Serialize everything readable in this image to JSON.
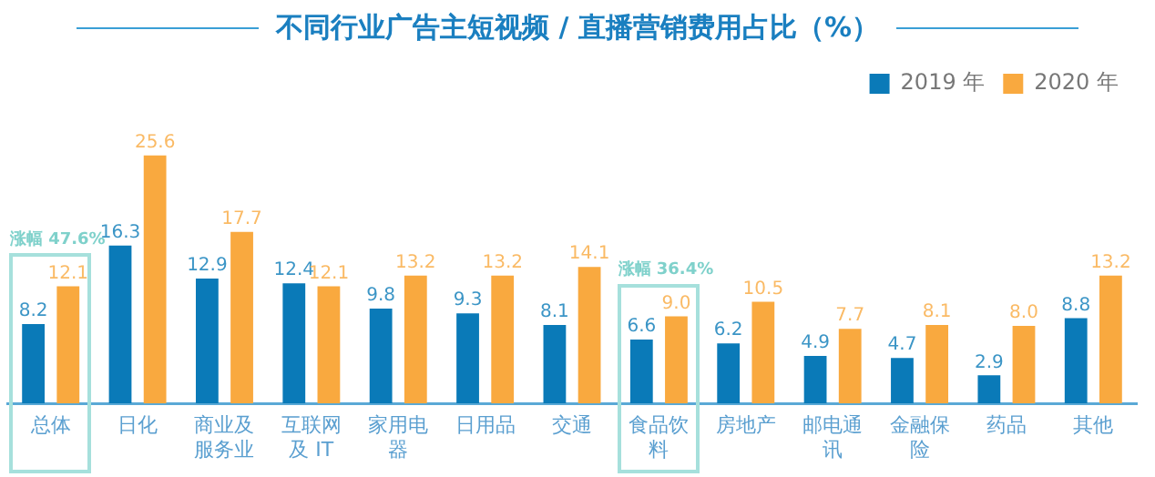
{
  "chart_data": {
    "type": "bar",
    "title": "不同行业广告主短视频 / 直播营销费用占比（%）",
    "categories": [
      "总体",
      "日化",
      "商业及服务业",
      "互联网及 IT",
      "家用电器",
      "日用品",
      "交通",
      "食品饮料",
      "房地产",
      "邮电通讯",
      "金融保险",
      "药品",
      "其他"
    ],
    "series": [
      {
        "name": "2019 年",
        "color": "#0a7ab8",
        "values": [
          8.2,
          16.3,
          12.9,
          12.4,
          9.8,
          9.3,
          8.1,
          6.6,
          6.2,
          4.9,
          4.7,
          2.9,
          8.8
        ]
      },
      {
        "name": "2020 年",
        "color": "#f9a93f",
        "values": [
          12.1,
          25.6,
          17.7,
          12.1,
          13.2,
          13.2,
          14.1,
          9.0,
          10.5,
          7.7,
          8.1,
          8.0,
          13.2
        ],
        "value_labels": [
          "12.1",
          "25.6",
          "17.7",
          "12.1",
          "13.2",
          "13.2",
          "14.1",
          "9.0",
          "10.5",
          "7.7",
          "8.1",
          "8.0",
          "13.2"
        ]
      }
    ],
    "annotations": [
      "涨幅 47.6%",
      "涨幅 36.4%"
    ],
    "data_labels": true,
    "legend": "top right",
    "grid": false
  }
}
